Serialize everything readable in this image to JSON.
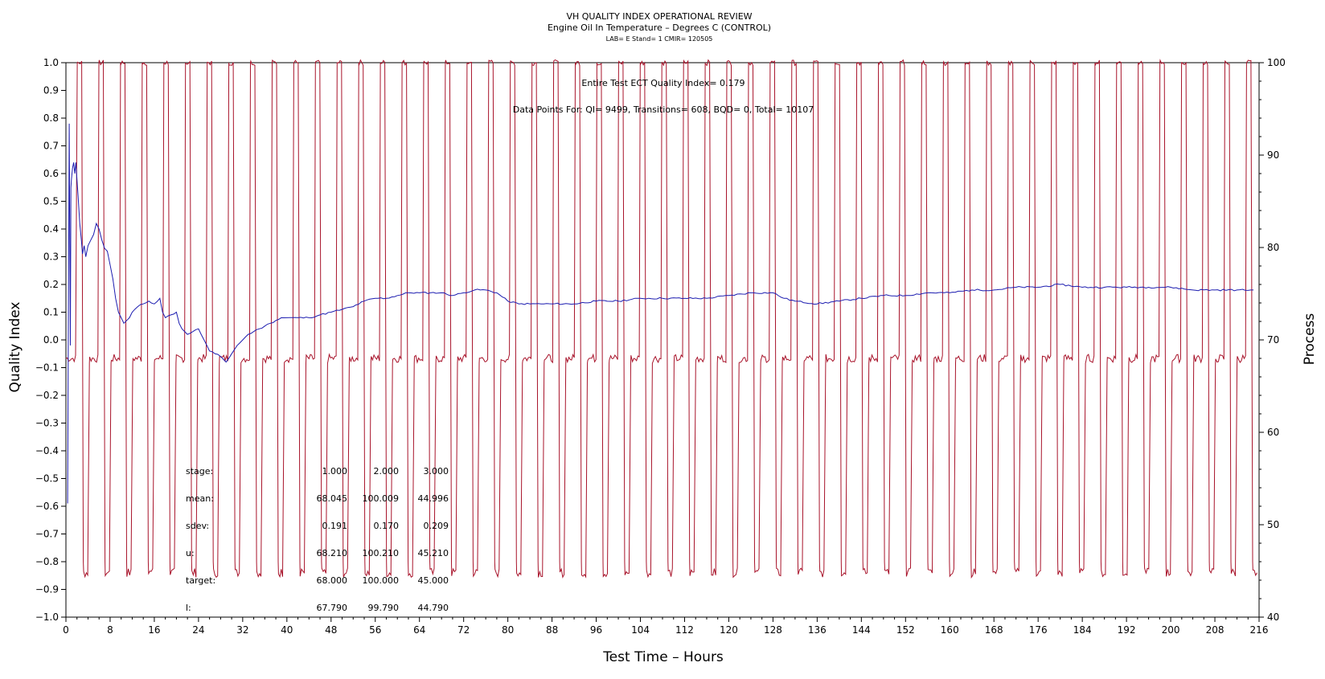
{
  "chart_data": {
    "type": "line",
    "title": "VH QUALITY INDEX OPERATIONAL REVIEW",
    "subtitle": "Engine Oil In Temperature – Degrees C (CONTROL)",
    "subtitle2": "LAB= E Stand= 1 CMIR= 120505",
    "xlabel": "Test Time – Hours",
    "ylabel": "Quality Index",
    "y2label": "Process",
    "xlim": [
      0,
      216
    ],
    "ylim": [
      -1.0,
      1.0
    ],
    "y2lim": [
      40,
      100
    ],
    "xticks": [
      0,
      8,
      16,
      24,
      32,
      40,
      48,
      56,
      64,
      72,
      80,
      88,
      96,
      104,
      112,
      120,
      128,
      136,
      144,
      152,
      160,
      168,
      176,
      184,
      192,
      200,
      208,
      216
    ],
    "yticks": [
      "1.0",
      "0.9",
      "0.8",
      "0.7",
      "0.6",
      "0.5",
      "0.4",
      "0.3",
      "0.2",
      "0.1",
      "0.0",
      "−0.1",
      "−0.2",
      "−0.3",
      "−0.4",
      "−0.5",
      "−0.6",
      "−0.7",
      "−0.8",
      "−0.9",
      "−1.0"
    ],
    "y2ticks": [
      100,
      90,
      80,
      70,
      60,
      50,
      40
    ],
    "grid": false,
    "annotations": {
      "quality_index": "Entire Test ECT Quality Index=   0.179",
      "data_points": "Data Points For: QI=  9499, Transitions=   608, BQD=      0, Total= 10107"
    },
    "stats_table": {
      "rows": [
        {
          "label": "stage:",
          "values": [
            "1.000",
            "2.000",
            "3.000"
          ]
        },
        {
          "label": "mean:",
          "values": [
            "68.045",
            "100.009",
            "44.996"
          ]
        },
        {
          "label": "sdev:",
          "values": [
            "0.191",
            "0.170",
            "0.209"
          ]
        },
        {
          "label": "u:",
          "values": [
            "68.210",
            "100.210",
            "45.210"
          ]
        },
        {
          "label": "target:",
          "values": [
            "68.000",
            "100.000",
            "45.000"
          ]
        },
        {
          "label": "l:",
          "values": [
            "67.790",
            "99.790",
            "44.790"
          ]
        }
      ]
    },
    "process_cycle": {
      "period_hours": 3.92,
      "first_rise_hour": 2.0,
      "high_hours": 1.0,
      "mid_hours": 1.92,
      "low_hours": 1.0,
      "levels": [
        68,
        100,
        45
      ],
      "end_hour": 215.5
    },
    "series": [
      {
        "axis": "quality_index",
        "x": [
          0.3,
          0.6,
          0.8,
          0.9,
          1.0,
          1.2,
          1.4,
          1.6,
          1.8,
          2.0,
          2.2,
          2.5,
          2.8,
          3.0,
          3.3,
          3.6,
          4.0,
          4.5,
          5.0,
          5.5,
          6.0,
          6.5,
          7.0,
          7.5,
          8.0,
          8.5,
          9.0,
          9.5,
          10.0,
          10.5,
          11.0,
          11.5,
          12.0,
          13.0,
          14.0,
          15.0,
          16.0,
          17.0,
          17.5,
          18.0,
          19.0,
          20.0,
          20.5,
          21.0,
          21.5,
          22.0,
          23.0,
          24.0,
          25.0,
          26.0,
          27.0,
          28.0,
          29.0,
          30.0,
          31.0,
          32.0,
          33.0,
          34.0,
          35.0,
          36.0,
          37.0,
          38.0,
          39.0,
          40.0,
          42.0,
          44.0,
          46.0,
          48.0,
          50.0,
          52.0,
          54.0,
          56.0,
          58.0,
          60.0,
          62.0,
          64.0,
          66.0,
          68.0,
          70.0,
          72.0,
          74.0,
          76.0,
          78.0,
          80.0,
          82.0,
          84.0,
          86.0,
          88.0,
          92.0,
          96.0,
          100.0,
          104.0,
          108.0,
          112.0,
          116.0,
          120.0,
          124.0,
          128.0,
          130.0,
          132.0,
          136.0,
          140.0,
          144.0,
          148.0,
          152.0,
          156.0,
          160.0,
          164.0,
          168.0,
          172.0,
          176.0,
          180.0,
          184.0,
          188.0,
          192.0,
          196.0,
          200.0,
          204.0,
          208.0,
          212.0,
          215.0
        ],
        "y": [
          -0.59,
          0.78,
          -0.02,
          0.55,
          0.58,
          0.62,
          0.64,
          0.6,
          0.64,
          0.58,
          0.52,
          0.42,
          0.36,
          0.31,
          0.34,
          0.3,
          0.34,
          0.36,
          0.38,
          0.42,
          0.4,
          0.36,
          0.33,
          0.32,
          0.27,
          0.22,
          0.15,
          0.1,
          0.08,
          0.06,
          0.07,
          0.08,
          0.1,
          0.12,
          0.13,
          0.14,
          0.13,
          0.15,
          0.1,
          0.08,
          0.09,
          0.1,
          0.06,
          0.04,
          0.03,
          0.02,
          0.03,
          0.04,
          0.0,
          -0.04,
          -0.05,
          -0.06,
          -0.08,
          -0.05,
          -0.02,
          0.0,
          0.02,
          0.03,
          0.04,
          0.05,
          0.06,
          0.07,
          0.08,
          0.08,
          0.08,
          0.08,
          0.09,
          0.1,
          0.11,
          0.12,
          0.14,
          0.15,
          0.15,
          0.16,
          0.17,
          0.17,
          0.17,
          0.17,
          0.16,
          0.17,
          0.18,
          0.18,
          0.17,
          0.14,
          0.13,
          0.13,
          0.13,
          0.13,
          0.13,
          0.14,
          0.14,
          0.15,
          0.15,
          0.15,
          0.15,
          0.16,
          0.17,
          0.17,
          0.15,
          0.14,
          0.13,
          0.14,
          0.15,
          0.16,
          0.16,
          0.17,
          0.17,
          0.18,
          0.18,
          0.19,
          0.19,
          0.2,
          0.19,
          0.19,
          0.19,
          0.19,
          0.19,
          0.18,
          0.18,
          0.18,
          0.18
        ]
      }
    ],
    "colors": {
      "quality_index": "#1c1cb0",
      "process": "#a8132a",
      "axis": "#000000"
    }
  }
}
